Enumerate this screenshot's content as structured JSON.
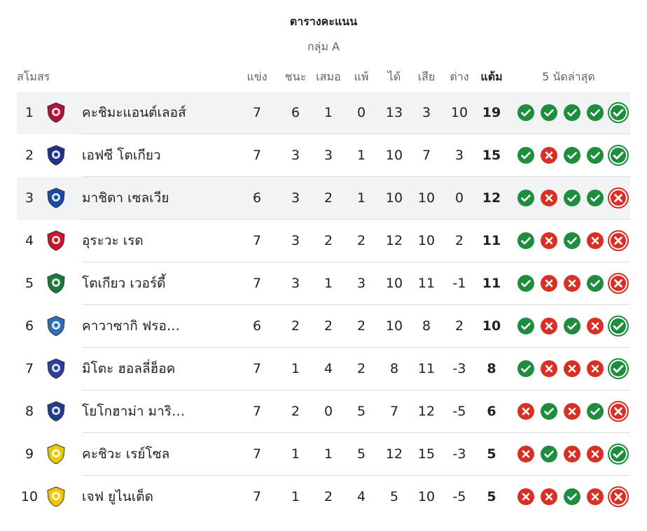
{
  "header": {
    "title": "ตารางคะแนน",
    "group": "กลุ่ม A"
  },
  "columns": {
    "club": "สโมสร",
    "played": "แข่ง",
    "won": "ชนะ",
    "drawn": "เสมอ",
    "lost": "แพ้",
    "gf": "ได้",
    "ga": "เสีย",
    "gd": "ต่าง",
    "pts": "แต้ม",
    "form": "5 นัดล่าสุด"
  },
  "rows": [
    {
      "pos": "1",
      "team": "คะชิมะแอนต์เลอส์",
      "played": "7",
      "won": "6",
      "drawn": "1",
      "lost": "0",
      "gf": "13",
      "ga": "3",
      "gd": "10",
      "pts": "19",
      "form": [
        "W",
        "W",
        "W",
        "W",
        "W"
      ],
      "logo": "kashima-antlers-crest",
      "color": "#b0123b"
    },
    {
      "pos": "2",
      "team": "เอฟซี โตเกียว",
      "played": "7",
      "won": "3",
      "drawn": "3",
      "lost": "1",
      "gf": "10",
      "ga": "7",
      "gd": "3",
      "pts": "15",
      "form": [
        "W",
        "L",
        "W",
        "W",
        "W"
      ],
      "logo": "fc-tokyo-crest",
      "color": "#1f2f8a"
    },
    {
      "pos": "3",
      "team": "มาชิดา เซลเวีย",
      "played": "6",
      "won": "3",
      "drawn": "2",
      "lost": "1",
      "gf": "10",
      "ga": "10",
      "gd": "0",
      "pts": "12",
      "form": [
        "W",
        "L",
        "W",
        "W",
        "L"
      ],
      "logo": "machida-zelvia-crest",
      "color": "#1a4aa8"
    },
    {
      "pos": "4",
      "team": "อุระวะ เรด",
      "played": "7",
      "won": "3",
      "drawn": "2",
      "lost": "2",
      "gf": "12",
      "ga": "10",
      "gd": "2",
      "pts": "11",
      "form": [
        "W",
        "L",
        "W",
        "L",
        "L"
      ],
      "logo": "urawa-reds-crest",
      "color": "#d0112b"
    },
    {
      "pos": "5",
      "team": "โตเกียว เวอร์ดี้",
      "played": "7",
      "won": "3",
      "drawn": "1",
      "lost": "3",
      "gf": "10",
      "ga": "11",
      "gd": "-1",
      "pts": "11",
      "form": [
        "W",
        "L",
        "L",
        "W",
        "L"
      ],
      "logo": "tokyo-verdy-crest",
      "color": "#1a7a3a"
    },
    {
      "pos": "6",
      "team": "คาวาซากิ ฟรอ…",
      "played": "6",
      "won": "2",
      "drawn": "2",
      "lost": "2",
      "gf": "10",
      "ga": "8",
      "gd": "2",
      "pts": "10",
      "form": [
        "W",
        "L",
        "W",
        "L",
        "W"
      ],
      "logo": "kawasaki-frontale-crest",
      "color": "#2a6fb8"
    },
    {
      "pos": "7",
      "team": "มิโตะ ฮอลลี่ฮ็อค",
      "played": "7",
      "won": "1",
      "drawn": "4",
      "lost": "2",
      "gf": "8",
      "ga": "11",
      "gd": "-3",
      "pts": "8",
      "form": [
        "W",
        "L",
        "L",
        "L",
        "W"
      ],
      "logo": "mito-hollyhock-crest",
      "color": "#2d3f9c"
    },
    {
      "pos": "8",
      "team": "โยโกฮาม่า มาริ…",
      "played": "7",
      "won": "2",
      "drawn": "0",
      "lost": "5",
      "gf": "7",
      "ga": "12",
      "gd": "-5",
      "pts": "6",
      "form": [
        "L",
        "W",
        "L",
        "W",
        "L"
      ],
      "logo": "yokohama-marinos-crest",
      "color": "#1d3c8f"
    },
    {
      "pos": "9",
      "team": "คะชิวะ เรย์โซล",
      "played": "7",
      "won": "1",
      "drawn": "1",
      "lost": "5",
      "gf": "12",
      "ga": "15",
      "gd": "-3",
      "pts": "5",
      "form": [
        "L",
        "W",
        "L",
        "L",
        "W"
      ],
      "logo": "kashiwa-reysol-crest",
      "color": "#e8c800"
    },
    {
      "pos": "10",
      "team": "เจฟ ยูไนเต็ด",
      "played": "7",
      "won": "1",
      "drawn": "2",
      "lost": "4",
      "gf": "5",
      "ga": "10",
      "gd": "-5",
      "pts": "5",
      "form": [
        "L",
        "L",
        "W",
        "L",
        "L"
      ],
      "logo": "jef-united-crest",
      "color": "#f2c500"
    }
  ]
}
